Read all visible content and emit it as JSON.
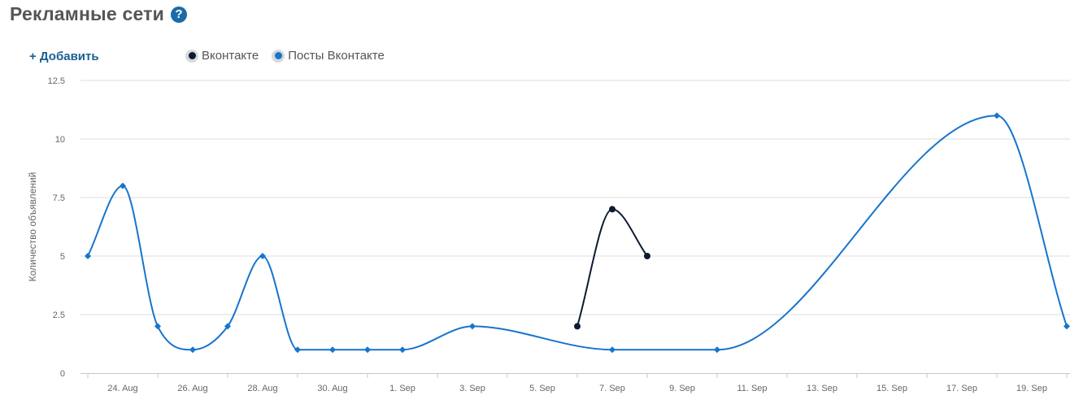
{
  "header": {
    "title": "Рекламные сети",
    "help_icon": "question-icon",
    "help_symbol": "?"
  },
  "toolbar": {
    "add_label": "+ Добавить"
  },
  "legend": {
    "items": [
      {
        "label": "Вконтакте",
        "color": "#0d1b33"
      },
      {
        "label": "Посты Вконтакте",
        "color": "#1874cd"
      }
    ]
  },
  "chart_data": {
    "type": "line",
    "ylabel": "Количество объявлений",
    "xlabel": "",
    "ylim": [
      0,
      12.5
    ],
    "yticks": [
      0,
      2.5,
      5,
      7.5,
      10,
      12.5
    ],
    "xrange": [
      "2019-08-23",
      "2019-09-20"
    ],
    "xtick_labels": [
      "24. Aug",
      "26. Aug",
      "28. Aug",
      "30. Aug",
      "1. Sep",
      "3. Sep",
      "5. Sep",
      "7. Sep",
      "9. Sep",
      "11. Sep",
      "13. Sep",
      "15. Sep",
      "17. Sep",
      "19. Sep"
    ],
    "xtick_dates": [
      "2019-08-24",
      "2019-08-26",
      "2019-08-28",
      "2019-08-30",
      "2019-09-01",
      "2019-09-03",
      "2019-09-05",
      "2019-09-07",
      "2019-09-09",
      "2019-09-11",
      "2019-09-13",
      "2019-09-15",
      "2019-09-17",
      "2019-09-19"
    ],
    "grid": true,
    "series": [
      {
        "name": "Вконтакте",
        "color": "#0d1b33",
        "marker": "circle",
        "x": [
          "2019-09-06",
          "2019-09-07",
          "2019-09-08"
        ],
        "values": [
          2,
          7,
          5
        ]
      },
      {
        "name": "Посты Вконтакте",
        "color": "#1874cd",
        "marker": "diamond",
        "x": [
          "2019-08-23",
          "2019-08-24",
          "2019-08-25",
          "2019-08-26",
          "2019-08-27",
          "2019-08-28",
          "2019-08-29",
          "2019-08-30",
          "2019-08-31",
          "2019-09-01",
          "2019-09-03",
          "2019-09-07",
          "2019-09-10",
          "2019-09-18",
          "2019-09-20"
        ],
        "values": [
          5,
          8,
          2,
          1,
          2,
          5,
          1,
          1,
          1,
          1,
          2,
          1,
          1,
          11,
          2
        ]
      }
    ]
  }
}
